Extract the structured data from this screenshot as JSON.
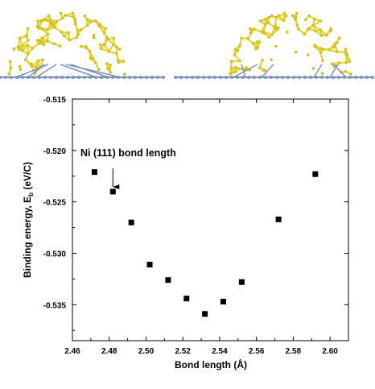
{
  "chart_data": {
    "type": "scatter",
    "xlabel": "Bond length (Å)",
    "ylabel": "Binding energy, E",
    "ylabel_sub": "b",
    "ylabel_unit": " (eV/C)",
    "xlim": [
      2.46,
      2.61
    ],
    "ylim": [
      -0.5385,
      -0.515
    ],
    "xticks": [
      2.46,
      2.48,
      2.5,
      2.52,
      2.54,
      2.56,
      2.58,
      2.6
    ],
    "xtick_labels": [
      "2.46",
      "2.48",
      "2.50",
      "2.52",
      "2.54",
      "2.56",
      "2.58",
      "2.60"
    ],
    "yticks": [
      -0.515,
      -0.52,
      -0.525,
      -0.53,
      -0.535
    ],
    "ytick_labels": [
      "-0.515",
      "-0.520",
      "-0.525",
      "-0.530",
      "-0.535"
    ],
    "grid": false,
    "legend": "none",
    "series": [
      {
        "marker": "square",
        "color": "#000000",
        "x": [
          2.472,
          2.482,
          2.492,
          2.502,
          2.512,
          2.522,
          2.532,
          2.542,
          2.552,
          2.572,
          2.592
        ],
        "y": [
          -0.5221,
          -0.524,
          -0.527,
          -0.5311,
          -0.5326,
          -0.5344,
          -0.5359,
          -0.5347,
          -0.5328,
          -0.5267,
          -0.5223
        ]
      }
    ],
    "annotation": {
      "text": "Ni (111) bond length",
      "points_to_x": 2.482
    }
  },
  "colors": {
    "cage_atoms": "#d4c21c",
    "cage_bonds": "#e6d53a",
    "substrate": "#7b93c4",
    "axes": "#000000"
  }
}
